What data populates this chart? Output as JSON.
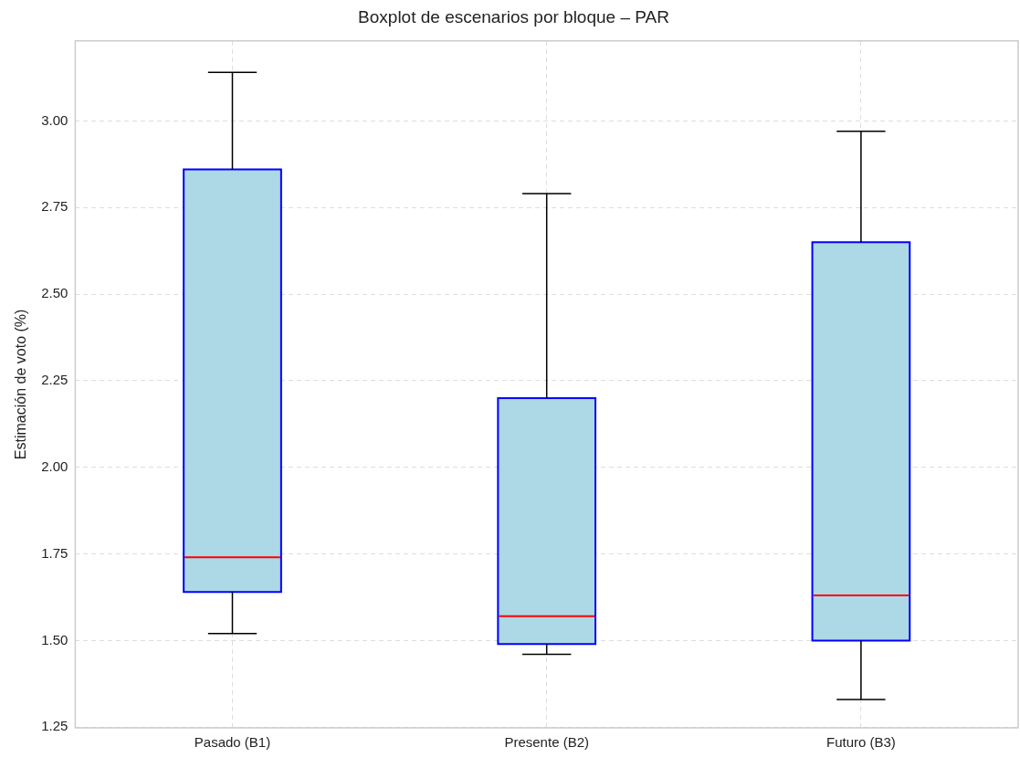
{
  "chart_data": {
    "type": "box",
    "title": "Boxplot de escenarios por bloque – PAR",
    "ylabel": "Estimación de voto (%)",
    "categories": [
      "Pasado (B1)",
      "Presente (B2)",
      "Futuro (B3)"
    ],
    "series": [
      {
        "color": "#add8e6",
        "boxes": [
          {
            "low": 1.52,
            "q1": 1.64,
            "median": 1.74,
            "q3": 2.86,
            "high": 3.14
          },
          {
            "low": 1.46,
            "q1": 1.49,
            "median": 1.57,
            "q3": 2.2,
            "high": 2.79
          },
          {
            "low": 1.33,
            "q1": 1.5,
            "median": 1.63,
            "q3": 2.65,
            "high": 2.97
          }
        ]
      }
    ],
    "ylim": [
      1.248,
      3.231
    ],
    "yticks": [
      {
        "value": 1.25,
        "label": "1.25"
      },
      {
        "value": 1.5,
        "label": "1.50"
      },
      {
        "value": 1.75,
        "label": "1.75"
      },
      {
        "value": 2.0,
        "label": "2.00"
      },
      {
        "value": 2.25,
        "label": "2.25"
      },
      {
        "value": 2.5,
        "label": "2.50"
      },
      {
        "value": 2.75,
        "label": "2.75"
      },
      {
        "value": 3.0,
        "label": "3.00"
      }
    ],
    "grid": true
  }
}
